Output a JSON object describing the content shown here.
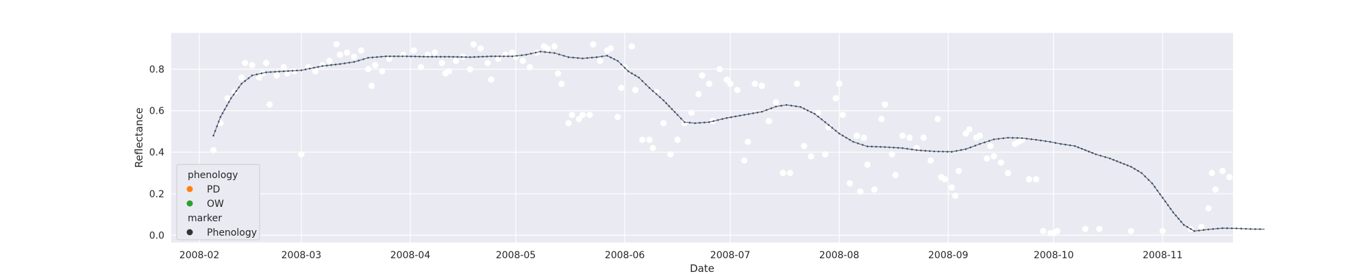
{
  "chart_data": {
    "type": "scatter",
    "title": "",
    "xlabel": "Date",
    "ylabel": "Reflectance",
    "xlim": [
      "2008-01-24",
      "2008-11-21"
    ],
    "ylim": [
      -0.035,
      0.975
    ],
    "x_ticks": [
      "2008-02-01",
      "2008-03-01",
      "2008-04-01",
      "2008-05-01",
      "2008-06-01",
      "2008-07-01",
      "2008-08-01",
      "2008-09-01",
      "2008-10-01",
      "2008-11-01"
    ],
    "x_tick_labels": [
      "2008-02",
      "2008-03",
      "2008-04",
      "2008-05",
      "2008-06",
      "2008-07",
      "2008-08",
      "2008-09",
      "2008-10",
      "2008-11"
    ],
    "y_ticks": [
      0.0,
      0.2,
      0.4,
      0.6,
      0.8
    ],
    "y_tick_labels": [
      "0.0",
      "0.2",
      "0.4",
      "0.6",
      "0.8"
    ],
    "grid": true,
    "legend": {
      "placement": "lower-left",
      "groups": [
        {
          "title": "phenology",
          "entries": [
            {
              "label": "PD",
              "color": "#ff7f0e"
            },
            {
              "label": "OW",
              "color": "#2ca02c"
            }
          ]
        },
        {
          "title": "marker",
          "entries": [
            {
              "label": "Phenology",
              "color": "#333333"
            }
          ]
        }
      ]
    },
    "series": [
      {
        "kind": "scatter",
        "color": "#ffffff",
        "points": [
          [
            "2008-02-05",
            0.41
          ],
          [
            "2008-02-07",
            0.54
          ],
          [
            "2008-02-09",
            0.66
          ],
          [
            "2008-02-11",
            0.69
          ],
          [
            "2008-02-13",
            0.76
          ],
          [
            "2008-02-14",
            0.83
          ],
          [
            "2008-02-16",
            0.82
          ],
          [
            "2008-02-18",
            0.76
          ],
          [
            "2008-02-19",
            0.78
          ],
          [
            "2008-02-20",
            0.83
          ],
          [
            "2008-02-21",
            0.63
          ],
          [
            "2008-02-23",
            0.77
          ],
          [
            "2008-02-25",
            0.81
          ],
          [
            "2008-02-26",
            0.78
          ],
          [
            "2008-02-28",
            0.79
          ],
          [
            "2008-03-01",
            0.39
          ],
          [
            "2008-03-03",
            0.81
          ],
          [
            "2008-03-05",
            0.79
          ],
          [
            "2008-03-07",
            0.82
          ],
          [
            "2008-03-09",
            0.84
          ],
          [
            "2008-03-11",
            0.92
          ],
          [
            "2008-03-12",
            0.87
          ],
          [
            "2008-03-14",
            0.88
          ],
          [
            "2008-03-16",
            0.86
          ],
          [
            "2008-03-18",
            0.89
          ],
          [
            "2008-03-20",
            0.8
          ],
          [
            "2008-03-21",
            0.72
          ],
          [
            "2008-03-22",
            0.82
          ],
          [
            "2008-03-24",
            0.79
          ],
          [
            "2008-03-26",
            0.85
          ],
          [
            "2008-03-30",
            0.87
          ],
          [
            "2008-04-02",
            0.89
          ],
          [
            "2008-04-04",
            0.81
          ],
          [
            "2008-04-06",
            0.87
          ],
          [
            "2008-04-08",
            0.88
          ],
          [
            "2008-04-10",
            0.83
          ],
          [
            "2008-04-11",
            0.78
          ],
          [
            "2008-04-12",
            0.79
          ],
          [
            "2008-04-14",
            0.84
          ],
          [
            "2008-04-16",
            0.86
          ],
          [
            "2008-04-18",
            0.8
          ],
          [
            "2008-04-19",
            0.92
          ],
          [
            "2008-04-21",
            0.9
          ],
          [
            "2008-04-23",
            0.83
          ],
          [
            "2008-04-24",
            0.75
          ],
          [
            "2008-04-26",
            0.85
          ],
          [
            "2008-04-28",
            0.87
          ],
          [
            "2008-04-30",
            0.88
          ],
          [
            "2008-05-01",
            0.86
          ],
          [
            "2008-05-03",
            0.84
          ],
          [
            "2008-05-05",
            0.81
          ],
          [
            "2008-05-07",
            0.88
          ],
          [
            "2008-05-09",
            0.91
          ],
          [
            "2008-05-10",
            0.9
          ],
          [
            "2008-05-12",
            0.91
          ],
          [
            "2008-05-13",
            0.78
          ],
          [
            "2008-05-14",
            0.73
          ],
          [
            "2008-05-16",
            0.54
          ],
          [
            "2008-05-17",
            0.58
          ],
          [
            "2008-05-19",
            0.56
          ],
          [
            "2008-05-20",
            0.58
          ],
          [
            "2008-05-22",
            0.58
          ],
          [
            "2008-05-23",
            0.92
          ],
          [
            "2008-05-25",
            0.84
          ],
          [
            "2008-05-27",
            0.89
          ],
          [
            "2008-05-28",
            0.9
          ],
          [
            "2008-05-30",
            0.57
          ],
          [
            "2008-05-31",
            0.71
          ],
          [
            "2008-06-01",
            0.81
          ],
          [
            "2008-06-03",
            0.91
          ],
          [
            "2008-06-04",
            0.7
          ],
          [
            "2008-06-06",
            0.46
          ],
          [
            "2008-06-08",
            0.46
          ],
          [
            "2008-06-09",
            0.42
          ],
          [
            "2008-06-10",
            0.69
          ],
          [
            "2008-06-12",
            0.54
          ],
          [
            "2008-06-14",
            0.39
          ],
          [
            "2008-06-16",
            0.46
          ],
          [
            "2008-06-18",
            0.54
          ],
          [
            "2008-06-20",
            0.59
          ],
          [
            "2008-06-22",
            0.68
          ],
          [
            "2008-06-23",
            0.77
          ],
          [
            "2008-06-25",
            0.73
          ],
          [
            "2008-06-26",
            0.55
          ],
          [
            "2008-06-28",
            0.8
          ],
          [
            "2008-06-30",
            0.75
          ],
          [
            "2008-07-01",
            0.73
          ],
          [
            "2008-07-03",
            0.7
          ],
          [
            "2008-07-05",
            0.36
          ],
          [
            "2008-07-06",
            0.45
          ],
          [
            "2008-07-08",
            0.73
          ],
          [
            "2008-07-10",
            0.72
          ],
          [
            "2008-07-12",
            0.55
          ],
          [
            "2008-07-14",
            0.64
          ],
          [
            "2008-07-16",
            0.3
          ],
          [
            "2008-07-18",
            0.3
          ],
          [
            "2008-07-20",
            0.73
          ],
          [
            "2008-07-22",
            0.43
          ],
          [
            "2008-07-24",
            0.38
          ],
          [
            "2008-07-26",
            0.59
          ],
          [
            "2008-07-28",
            0.39
          ],
          [
            "2008-07-29",
            0.52
          ],
          [
            "2008-07-31",
            0.66
          ],
          [
            "2008-08-01",
            0.73
          ],
          [
            "2008-08-02",
            0.58
          ],
          [
            "2008-08-04",
            0.25
          ],
          [
            "2008-08-06",
            0.48
          ],
          [
            "2008-08-07",
            0.21
          ],
          [
            "2008-08-08",
            0.47
          ],
          [
            "2008-08-09",
            0.34
          ],
          [
            "2008-08-11",
            0.22
          ],
          [
            "2008-08-13",
            0.56
          ],
          [
            "2008-08-14",
            0.63
          ],
          [
            "2008-08-16",
            0.39
          ],
          [
            "2008-08-17",
            0.29
          ],
          [
            "2008-08-19",
            0.48
          ],
          [
            "2008-08-21",
            0.47
          ],
          [
            "2008-08-23",
            0.42
          ],
          [
            "2008-08-25",
            0.47
          ],
          [
            "2008-08-27",
            0.36
          ],
          [
            "2008-08-29",
            0.56
          ],
          [
            "2008-08-30",
            0.28
          ],
          [
            "2008-08-31",
            0.27
          ],
          [
            "2008-09-02",
            0.23
          ],
          [
            "2008-09-03",
            0.19
          ],
          [
            "2008-09-04",
            0.31
          ],
          [
            "2008-09-06",
            0.49
          ],
          [
            "2008-09-07",
            0.51
          ],
          [
            "2008-09-09",
            0.47
          ],
          [
            "2008-09-10",
            0.48
          ],
          [
            "2008-09-12",
            0.37
          ],
          [
            "2008-09-13",
            0.43
          ],
          [
            "2008-09-14",
            0.38
          ],
          [
            "2008-09-16",
            0.35
          ],
          [
            "2008-09-18",
            0.3
          ],
          [
            "2008-09-20",
            0.44
          ],
          [
            "2008-09-21",
            0.45
          ],
          [
            "2008-09-22",
            0.46
          ],
          [
            "2008-09-24",
            0.27
          ],
          [
            "2008-09-26",
            0.27
          ],
          [
            "2008-09-28",
            0.02
          ],
          [
            "2008-09-30",
            0.01
          ],
          [
            "2008-10-01",
            0.01
          ],
          [
            "2008-10-02",
            0.02
          ],
          [
            "2008-10-10",
            0.03
          ],
          [
            "2008-10-14",
            0.03
          ],
          [
            "2008-10-23",
            0.02
          ],
          [
            "2008-11-01",
            0.02
          ],
          [
            "2008-11-09",
            0.03
          ],
          [
            "2008-11-12",
            0.04
          ],
          [
            "2008-11-14",
            0.13
          ],
          [
            "2008-11-15",
            0.3
          ],
          [
            "2008-11-16",
            0.22
          ],
          [
            "2008-11-18",
            0.31
          ],
          [
            "2008-11-20",
            0.28
          ]
        ]
      },
      {
        "kind": "line",
        "color": "#546579",
        "points": [
          [
            "2008-02-05",
            0.48
          ],
          [
            "2008-02-07",
            0.57
          ],
          [
            "2008-02-10",
            0.66
          ],
          [
            "2008-02-13",
            0.73
          ],
          [
            "2008-02-16",
            0.77
          ],
          [
            "2008-02-20",
            0.785
          ],
          [
            "2008-02-25",
            0.79
          ],
          [
            "2008-03-01",
            0.795
          ],
          [
            "2008-03-07",
            0.815
          ],
          [
            "2008-03-12",
            0.825
          ],
          [
            "2008-03-16",
            0.835
          ],
          [
            "2008-03-20",
            0.855
          ],
          [
            "2008-03-25",
            0.862
          ],
          [
            "2008-03-31",
            0.862
          ],
          [
            "2008-04-06",
            0.86
          ],
          [
            "2008-04-12",
            0.86
          ],
          [
            "2008-04-18",
            0.858
          ],
          [
            "2008-04-24",
            0.862
          ],
          [
            "2008-04-30",
            0.862
          ],
          [
            "2008-05-04",
            0.87
          ],
          [
            "2008-05-08",
            0.885
          ],
          [
            "2008-05-12",
            0.878
          ],
          [
            "2008-05-16",
            0.858
          ],
          [
            "2008-05-20",
            0.852
          ],
          [
            "2008-05-24",
            0.858
          ],
          [
            "2008-05-27",
            0.865
          ],
          [
            "2008-05-30",
            0.84
          ],
          [
            "2008-06-02",
            0.79
          ],
          [
            "2008-06-05",
            0.76
          ],
          [
            "2008-06-08",
            0.71
          ],
          [
            "2008-06-12",
            0.65
          ],
          [
            "2008-06-16",
            0.58
          ],
          [
            "2008-06-18",
            0.545
          ],
          [
            "2008-06-21",
            0.54
          ],
          [
            "2008-06-25",
            0.545
          ],
          [
            "2008-06-30",
            0.565
          ],
          [
            "2008-07-05",
            0.58
          ],
          [
            "2008-07-10",
            0.595
          ],
          [
            "2008-07-14",
            0.62
          ],
          [
            "2008-07-17",
            0.628
          ],
          [
            "2008-07-21",
            0.618
          ],
          [
            "2008-07-25",
            0.585
          ],
          [
            "2008-07-28",
            0.545
          ],
          [
            "2008-08-01",
            0.49
          ],
          [
            "2008-08-05",
            0.45
          ],
          [
            "2008-08-09",
            0.428
          ],
          [
            "2008-08-14",
            0.425
          ],
          [
            "2008-08-19",
            0.42
          ],
          [
            "2008-08-23",
            0.41
          ],
          [
            "2008-08-28",
            0.404
          ],
          [
            "2008-09-02",
            0.402
          ],
          [
            "2008-09-06",
            0.415
          ],
          [
            "2008-09-10",
            0.44
          ],
          [
            "2008-09-14",
            0.462
          ],
          [
            "2008-09-18",
            0.47
          ],
          [
            "2008-09-22",
            0.468
          ],
          [
            "2008-09-26",
            0.46
          ],
          [
            "2008-09-30",
            0.45
          ],
          [
            "2008-10-03",
            0.44
          ],
          [
            "2008-10-07",
            0.43
          ],
          [
            "2008-10-10",
            0.41
          ],
          [
            "2008-10-13",
            0.39
          ],
          [
            "2008-10-17",
            0.37
          ],
          [
            "2008-10-20",
            0.35
          ],
          [
            "2008-10-23",
            0.33
          ],
          [
            "2008-10-26",
            0.3
          ],
          [
            "2008-10-29",
            0.25
          ],
          [
            "2008-11-01",
            0.18
          ],
          [
            "2008-11-04",
            0.11
          ],
          [
            "2008-11-07",
            0.05
          ],
          [
            "2008-11-10",
            0.02
          ],
          [
            "2008-11-14",
            0.028
          ],
          [
            "2008-11-18",
            0.034
          ],
          [
            "2008-11-22",
            0.033
          ],
          [
            "2008-11-26",
            0.03
          ],
          [
            "2008-11-30",
            0.029
          ]
        ]
      }
    ]
  }
}
